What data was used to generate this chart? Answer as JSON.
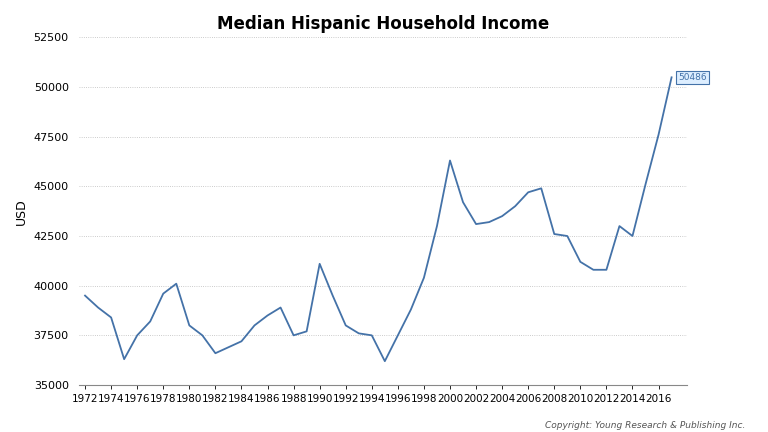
{
  "title": "Median Hispanic Household Income",
  "xlabel": "",
  "ylabel": "USD",
  "copyright": "Copyright: Young Research & Publishing Inc.",
  "line_color": "#4472a8",
  "background_color": "#ffffff",
  "annotation_value": "50486",
  "annotation_color": "#4472a8",
  "annotation_bg": "#ddeeff",
  "years": [
    1972,
    1973,
    1974,
    1975,
    1976,
    1977,
    1978,
    1979,
    1980,
    1981,
    1982,
    1983,
    1984,
    1985,
    1986,
    1987,
    1988,
    1989,
    1990,
    1991,
    1992,
    1993,
    1994,
    1995,
    1996,
    1997,
    1998,
    1999,
    2000,
    2001,
    2002,
    2003,
    2004,
    2005,
    2006,
    2007,
    2008,
    2009,
    2010,
    2011,
    2012,
    2013,
    2014,
    2015,
    2016,
    2017
  ],
  "values": [
    39500,
    38900,
    38400,
    36300,
    37500,
    38200,
    39600,
    40100,
    38000,
    37500,
    36600,
    36900,
    37200,
    38000,
    38500,
    38900,
    37500,
    37700,
    41100,
    39500,
    38000,
    37600,
    37500,
    36200,
    37500,
    38800,
    40400,
    43000,
    46300,
    44200,
    43100,
    43200,
    43500,
    44000,
    44700,
    44900,
    42600,
    42500,
    41200,
    40800,
    40800,
    43000,
    42500,
    45100,
    47600,
    50486
  ],
  "ylim": [
    35000,
    52500
  ],
  "yticks": [
    35000,
    37500,
    40000,
    42500,
    45000,
    47500,
    50000,
    52500
  ],
  "xtick_years": [
    1972,
    1974,
    1976,
    1978,
    1980,
    1982,
    1984,
    1986,
    1988,
    1990,
    1992,
    1994,
    1996,
    1998,
    2000,
    2002,
    2004,
    2006,
    2008,
    2010,
    2012,
    2014,
    2016
  ]
}
